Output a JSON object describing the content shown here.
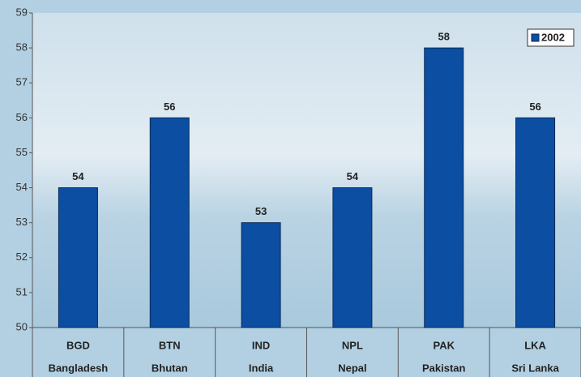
{
  "chart_data": {
    "type": "bar",
    "categories": [
      "BGD",
      "BTN",
      "IND",
      "NPL",
      "PAK",
      "LKA"
    ],
    "category_labels": [
      "Bangladesh",
      "Bhutan",
      "India",
      "Nepal",
      "Pakistan",
      "Sri Lanka"
    ],
    "series": [
      {
        "name": "2002",
        "color": "#0b4ea2",
        "values": [
          54,
          56,
          53,
          54,
          58,
          56
        ]
      }
    ],
    "ylim": [
      50,
      59
    ],
    "yticks": [
      50,
      51,
      52,
      53,
      54,
      55,
      56,
      57,
      58,
      59
    ],
    "legend": "top-right"
  }
}
